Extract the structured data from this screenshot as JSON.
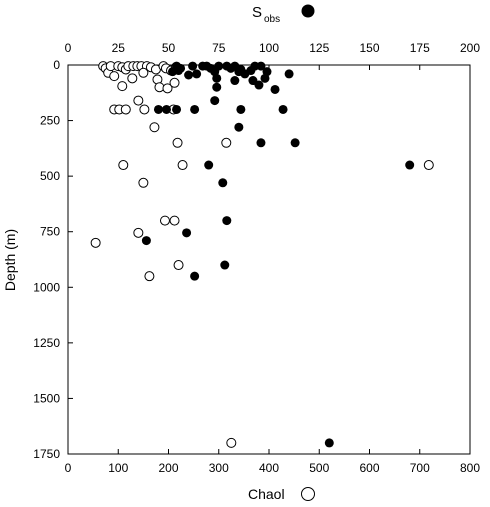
{
  "chart_data": {
    "type": "scatter",
    "ylabel": "Depth (m)",
    "y_axis": {
      "range": [
        0,
        1750
      ],
      "inverted": true,
      "ticks": [
        "0",
        "250",
        "500",
        "750",
        "1000",
        "1250",
        "1500",
        "1750"
      ]
    },
    "x_bottom": {
      "range": [
        0,
        800
      ],
      "ticks": [
        "0",
        "100",
        "200",
        "300",
        "400",
        "500",
        "600",
        "700",
        "800"
      ]
    },
    "x_top": {
      "range": [
        0,
        200
      ],
      "ticks": [
        "0",
        "25",
        "50",
        "75",
        "100",
        "125",
        "150",
        "175",
        "200"
      ]
    },
    "grid": false,
    "series": [
      {
        "name_main": "S",
        "name_sub": "obs",
        "axis": "top",
        "marker": "filled-circle",
        "color": "#000000",
        "points": [
          [
            54,
            5
          ],
          [
            56,
            15
          ],
          [
            55,
            25
          ],
          [
            52,
            30
          ],
          [
            60,
            45
          ],
          [
            62,
            5
          ],
          [
            64,
            40
          ],
          [
            67,
            5
          ],
          [
            69,
            5
          ],
          [
            71,
            15
          ],
          [
            73,
            30
          ],
          [
            75,
            5
          ],
          [
            79,
            5
          ],
          [
            81,
            15
          ],
          [
            83,
            5
          ],
          [
            85,
            30
          ],
          [
            86,
            20
          ],
          [
            88,
            40
          ],
          [
            91,
            25
          ],
          [
            93,
            5
          ],
          [
            96,
            5
          ],
          [
            99,
            30
          ],
          [
            98,
            60
          ],
          [
            110,
            40
          ],
          [
            74,
            60
          ],
          [
            83,
            70
          ],
          [
            92,
            70
          ],
          [
            74,
            100
          ],
          [
            95,
            90
          ],
          [
            103,
            110
          ],
          [
            107,
            200
          ],
          [
            86,
            200
          ],
          [
            73,
            160
          ],
          [
            45,
            200
          ],
          [
            49,
            200
          ],
          [
            54,
            200
          ],
          [
            63,
            200
          ],
          [
            85,
            280
          ],
          [
            96,
            350
          ],
          [
            113,
            350
          ],
          [
            70,
            450
          ],
          [
            170,
            450
          ],
          [
            77,
            530
          ],
          [
            79,
            700
          ],
          [
            39,
            790
          ],
          [
            59,
            755
          ],
          [
            78,
            900
          ],
          [
            63,
            950
          ],
          [
            130,
            1700
          ]
        ]
      },
      {
        "name": "Chaol",
        "axis": "bottom",
        "marker": "open-circle",
        "color": "#000000",
        "points": [
          [
            70,
            5
          ],
          [
            75,
            15
          ],
          [
            80,
            35
          ],
          [
            85,
            5
          ],
          [
            92,
            50
          ],
          [
            100,
            5
          ],
          [
            108,
            10
          ],
          [
            115,
            20
          ],
          [
            120,
            5
          ],
          [
            130,
            5
          ],
          [
            138,
            5
          ],
          [
            146,
            5
          ],
          [
            157,
            5
          ],
          [
            165,
            10
          ],
          [
            175,
            20
          ],
          [
            190,
            5
          ],
          [
            195,
            15
          ],
          [
            205,
            25
          ],
          [
            215,
            10
          ],
          [
            150,
            35
          ],
          [
            178,
            65
          ],
          [
            182,
            100
          ],
          [
            198,
            105
          ],
          [
            212,
            80
          ],
          [
            108,
            95
          ],
          [
            128,
            60
          ],
          [
            140,
            160
          ],
          [
            152,
            200
          ],
          [
            210,
            200
          ],
          [
            92,
            200
          ],
          [
            102,
            200
          ],
          [
            115,
            200
          ],
          [
            172,
            280
          ],
          [
            218,
            350
          ],
          [
            315,
            350
          ],
          [
            110,
            450
          ],
          [
            150,
            530
          ],
          [
            228,
            450
          ],
          [
            193,
            700
          ],
          [
            212,
            700
          ],
          [
            140,
            755
          ],
          [
            55,
            800
          ],
          [
            220,
            900
          ],
          [
            162,
            950
          ],
          [
            325,
            1700
          ],
          [
            718,
            450
          ]
        ]
      }
    ]
  }
}
